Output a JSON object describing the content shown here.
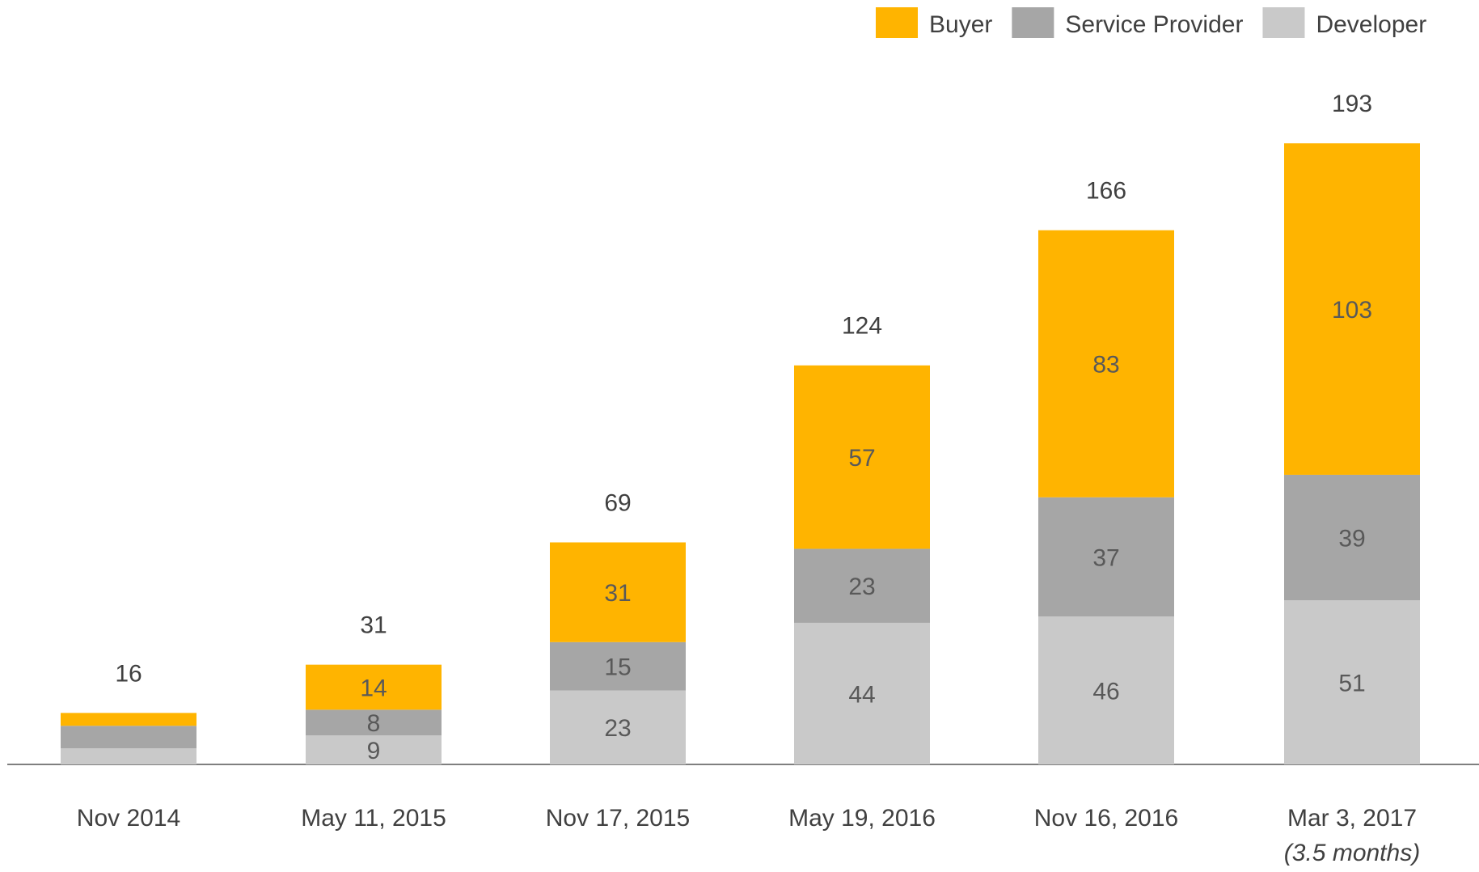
{
  "chart_data": {
    "type": "stacked_bar",
    "categories": [
      "Nov 2014",
      "May 11, 2015",
      "Nov 17, 2015",
      "May 19, 2016",
      "Nov 16, 2016",
      "Mar 3, 2017"
    ],
    "annotation": "(3.5 months)",
    "series": [
      {
        "name": "Developer",
        "color": "#c9c9c9",
        "values": [
          5,
          9,
          23,
          44,
          46,
          51
        ],
        "value_labels": [
          null,
          "9",
          "23",
          "44",
          "46",
          "51"
        ]
      },
      {
        "name": "Service Provider",
        "color": "#a6a6a6",
        "values": [
          7,
          8,
          15,
          23,
          37,
          39
        ],
        "value_labels": [
          null,
          "8",
          "15",
          "23",
          "37",
          "39"
        ]
      },
      {
        "name": "Buyer",
        "color": "#ffb400",
        "values": [
          4,
          14,
          31,
          57,
          83,
          103
        ],
        "value_labels": [
          null,
          "14",
          "31",
          "57",
          "83",
          "103"
        ]
      }
    ],
    "totals": [
      16,
      31,
      69,
      124,
      166,
      193
    ],
    "ylim": [
      0,
      230
    ],
    "legend": "top-right"
  }
}
